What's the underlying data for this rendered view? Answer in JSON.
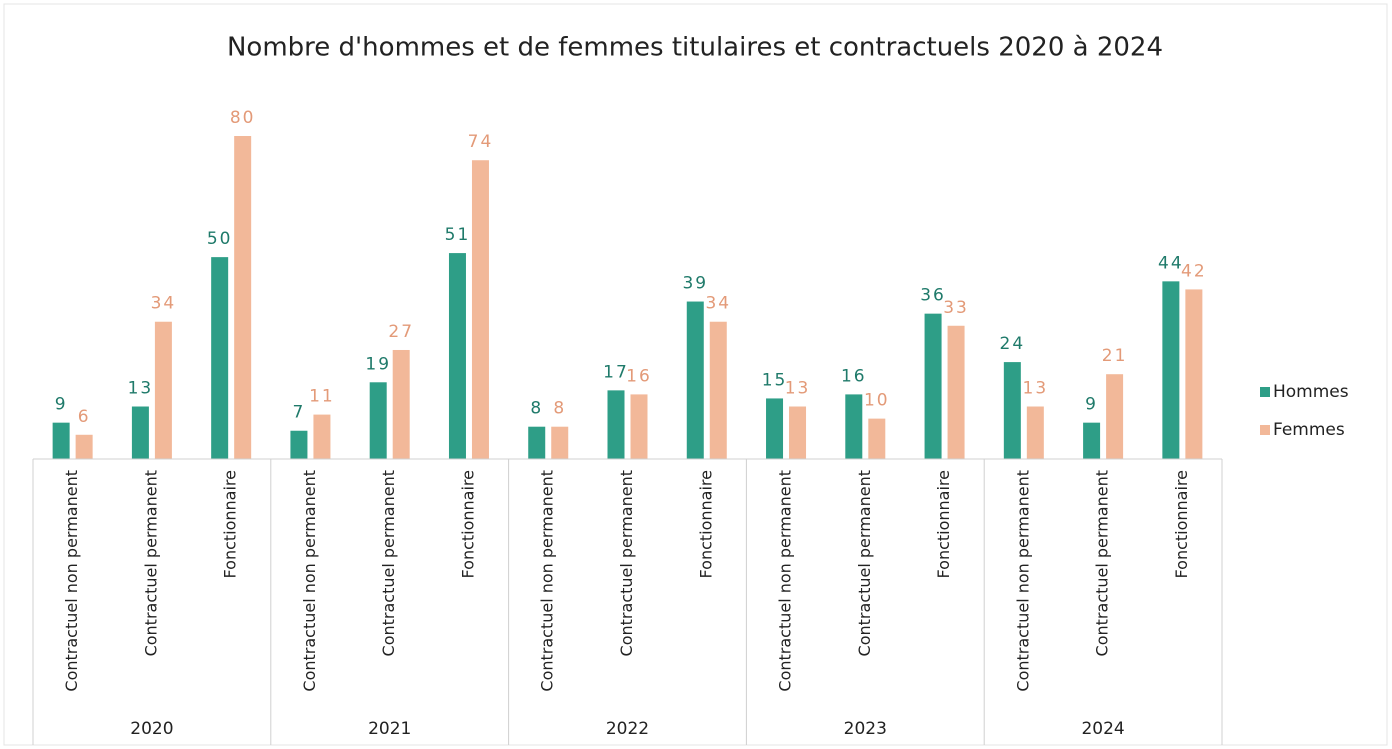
{
  "chart_data": {
    "type": "bar",
    "title": "Nombre d'hommes et de femmes titulaires et contractuels 2020 à 2024",
    "groups": [
      "2020",
      "2021",
      "2022",
      "2023",
      "2024"
    ],
    "categories": [
      "Contractuel non permanent",
      "Contractuel permanent",
      "Fonctionnaire",
      "Contractuel non permanent",
      "Contractuel permanent",
      "Fonctionnaire",
      "Contractuel non permanent",
      "Contractuel permanent",
      "Fonctionnaire",
      "Contractuel non permanent",
      "Contractuel permanent",
      "Fonctionnaire",
      "Contractuel non permanent",
      "Contractuel permanent",
      "Fonctionnaire"
    ],
    "series": [
      {
        "name": "Hommes",
        "color": "#2e9e87",
        "label_color": "#1f7a6a",
        "values": [
          9,
          13,
          50,
          7,
          19,
          51,
          8,
          17,
          39,
          15,
          16,
          36,
          24,
          9,
          44
        ]
      },
      {
        "name": "Femmes",
        "color": "#f2b899",
        "label_color": "#e39a78",
        "values": [
          6,
          34,
          80,
          11,
          27,
          74,
          8,
          16,
          34,
          13,
          10,
          33,
          13,
          21,
          42
        ]
      }
    ],
    "legend": "right"
  }
}
